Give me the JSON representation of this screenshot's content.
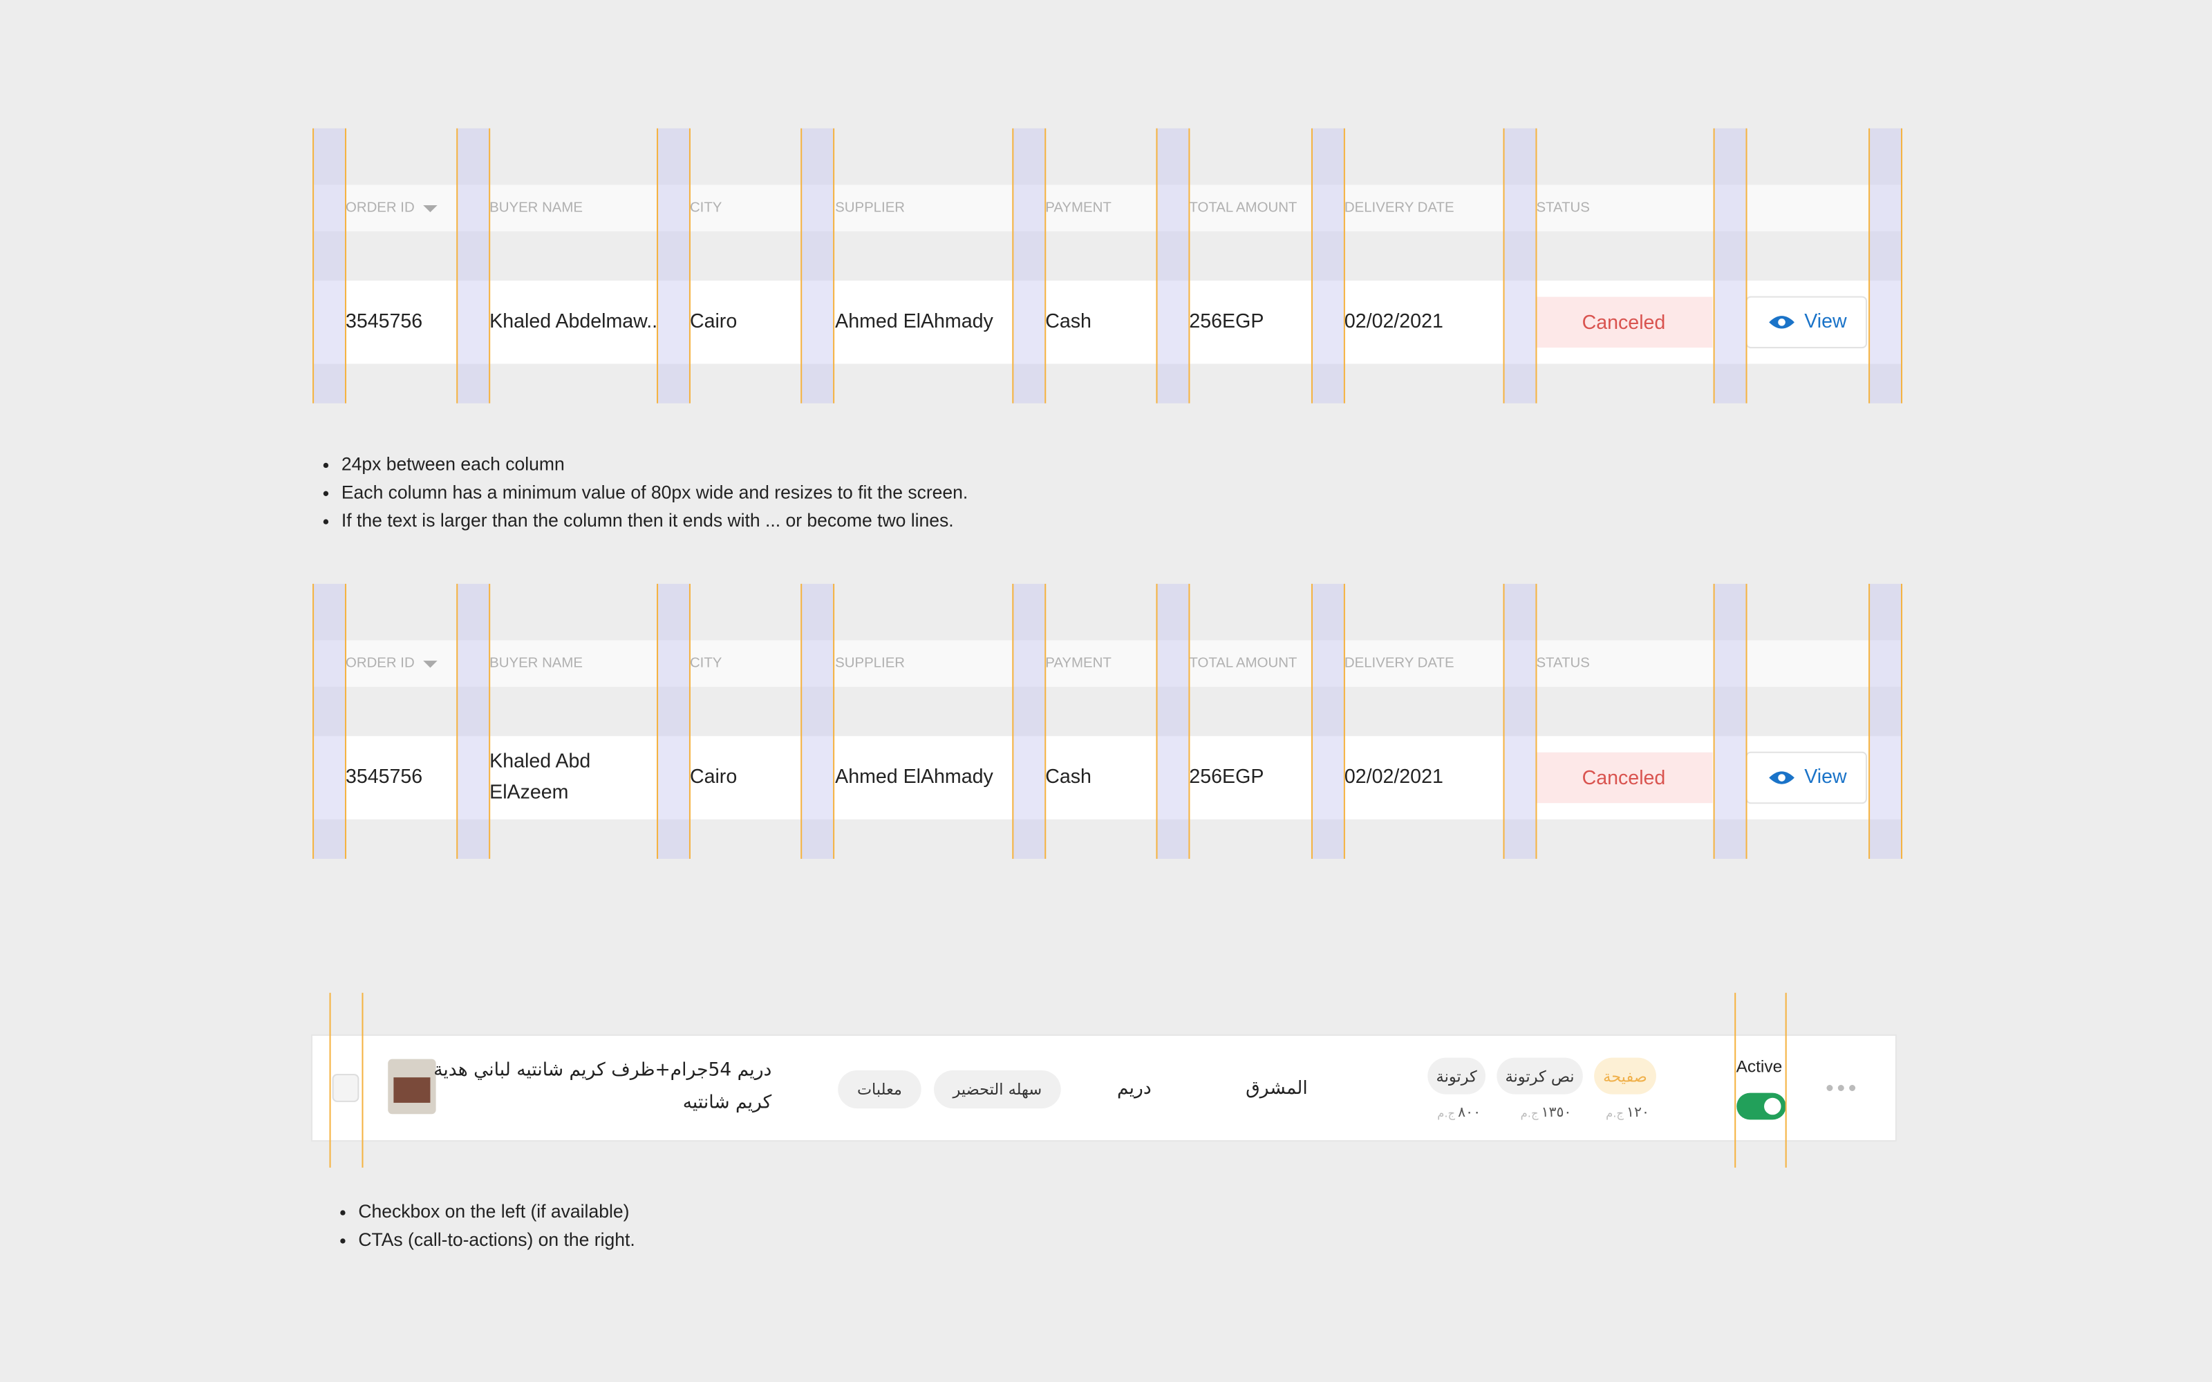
{
  "tables": [
    {
      "headers": [
        "ORDER ID",
        "BUYER NAME",
        "CITY",
        "SUPPLIER",
        "PAYMENT",
        "TOTAL AMOUNT",
        "DELIVERY DATE",
        "STATUS"
      ],
      "cells": [
        "3545756",
        "Khaled Abdelmaw..",
        "Cairo",
        "Ahmed ElAhmady",
        "Cash",
        "256EGP",
        "02/02/2021"
      ],
      "status": "Canceled",
      "action": "View"
    },
    {
      "headers": [
        "ORDER ID",
        "BUYER NAME",
        "CITY",
        "SUPPLIER",
        "PAYMENT",
        "TOTAL AMOUNT",
        "DELIVERY DATE",
        "STATUS"
      ],
      "cells": [
        "3545756",
        [
          "Khaled Abd",
          "ElAzeem"
        ],
        "Cairo",
        "Ahmed ElAhmady",
        "Cash",
        "256EGP",
        "02/02/2021"
      ],
      "status": "Canceled",
      "action": "View"
    }
  ],
  "column_notes": [
    "24px between each column",
    "Each column has a minimum value of 80px wide and resizes to fit the screen.",
    "If the text is larger than the column then it ends with ... or become two lines."
  ],
  "product_row": {
    "title_lines": [
      "دريم 54جرام+ظرف كريم شانتيه لباني هدية",
      "كريم شانتيه"
    ],
    "tags": [
      "معلبات",
      "سهله التحضير"
    ],
    "brand": "دريم",
    "company": "المشرق",
    "units": [
      "كرتونة",
      "نص كرتونة",
      "صفيحة"
    ],
    "prices": [
      "٨٠٠",
      "١٣٥٠",
      "١٢٠"
    ],
    "currency": "ج.م",
    "status_label": "Active"
  },
  "row_notes": [
    "Checkbox on the left (if available)",
    "CTAs (call-to-actions) on the right."
  ]
}
